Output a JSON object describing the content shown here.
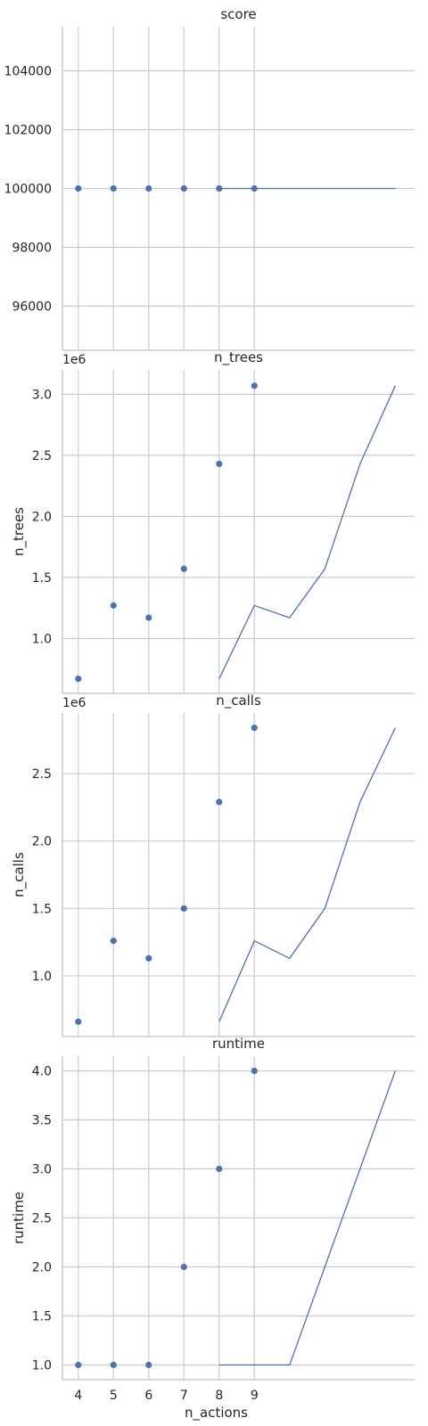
{
  "chart_data": [
    {
      "type": "scatter",
      "title": "score",
      "xlabel": "",
      "ylabel": "",
      "offset_text": "",
      "xlim": [
        3.55,
        13.55
      ],
      "ylim": [
        94500,
        105500
      ],
      "yticks": [
        96000,
        98000,
        100000,
        102000,
        104000
      ],
      "ytick_labels": [
        "96000",
        "98000",
        "100000",
        "102000",
        "104000"
      ],
      "x_grid": [
        4,
        5,
        6,
        7,
        8,
        9
      ],
      "points": {
        "x": [
          4,
          5,
          6,
          7,
          8,
          9
        ],
        "y": [
          100000,
          100000,
          100000,
          100000,
          100000,
          100000
        ]
      },
      "line": {
        "x": [
          8,
          9,
          10,
          11,
          12,
          13
        ],
        "y": [
          100000,
          100000,
          100000,
          100000,
          100000,
          100000
        ]
      },
      "grid": true
    },
    {
      "type": "scatter",
      "title": "n_trees",
      "xlabel": "",
      "ylabel": "n_trees",
      "offset_text": "1e6",
      "xlim": [
        3.55,
        13.55
      ],
      "ylim": [
        0.55,
        3.2
      ],
      "yticks": [
        1.0,
        1.5,
        2.0,
        2.5,
        3.0
      ],
      "ytick_labels": [
        "1.0",
        "1.5",
        "2.0",
        "2.5",
        "3.0"
      ],
      "x_grid": [
        4,
        5,
        6,
        7,
        8,
        9
      ],
      "points": {
        "x": [
          4,
          5,
          6,
          7,
          8,
          9
        ],
        "y": [
          0.67,
          1.27,
          1.17,
          1.57,
          2.43,
          3.07
        ]
      },
      "line": {
        "x": [
          8,
          9,
          10,
          11,
          12,
          13
        ],
        "y": [
          0.67,
          1.27,
          1.17,
          1.57,
          2.43,
          3.07
        ]
      },
      "grid": true
    },
    {
      "type": "scatter",
      "title": "n_calls",
      "xlabel": "",
      "ylabel": "n_calls",
      "offset_text": "1e6",
      "xlim": [
        3.55,
        13.55
      ],
      "ylim": [
        0.55,
        2.95
      ],
      "yticks": [
        1.0,
        1.5,
        2.0,
        2.5
      ],
      "ytick_labels": [
        "1.0",
        "1.5",
        "2.0",
        "2.5"
      ],
      "x_grid": [
        4,
        5,
        6,
        7,
        8,
        9
      ],
      "points": {
        "x": [
          4,
          5,
          6,
          7,
          8,
          9
        ],
        "y": [
          0.66,
          1.26,
          1.13,
          1.5,
          2.29,
          2.84
        ]
      },
      "line": {
        "x": [
          8,
          9,
          10,
          11,
          12,
          13
        ],
        "y": [
          0.66,
          1.26,
          1.13,
          1.5,
          2.29,
          2.84
        ]
      },
      "grid": true
    },
    {
      "type": "scatter",
      "title": "runtime",
      "xlabel": "n_actions",
      "ylabel": "runtime",
      "offset_text": "",
      "xlim": [
        3.55,
        13.55
      ],
      "ylim": [
        0.85,
        4.15
      ],
      "yticks": [
        1.0,
        1.5,
        2.0,
        2.5,
        3.0,
        3.5,
        4.0
      ],
      "ytick_labels": [
        "1.0",
        "1.5",
        "2.0",
        "2.5",
        "3.0",
        "3.5",
        "4.0"
      ],
      "xticks": [
        4,
        5,
        6,
        7,
        8,
        9
      ],
      "xtick_labels": [
        "4",
        "5",
        "6",
        "7",
        "8",
        "9"
      ],
      "x_grid": [
        4,
        5,
        6,
        7,
        8,
        9
      ],
      "points": {
        "x": [
          4,
          5,
          6,
          7,
          8,
          9
        ],
        "y": [
          1,
          1,
          1,
          2,
          3,
          4
        ]
      },
      "line": {
        "x": [
          8,
          9,
          10,
          11,
          12,
          13
        ],
        "y": [
          1,
          1,
          1,
          2,
          3,
          4
        ]
      },
      "grid": true
    }
  ]
}
